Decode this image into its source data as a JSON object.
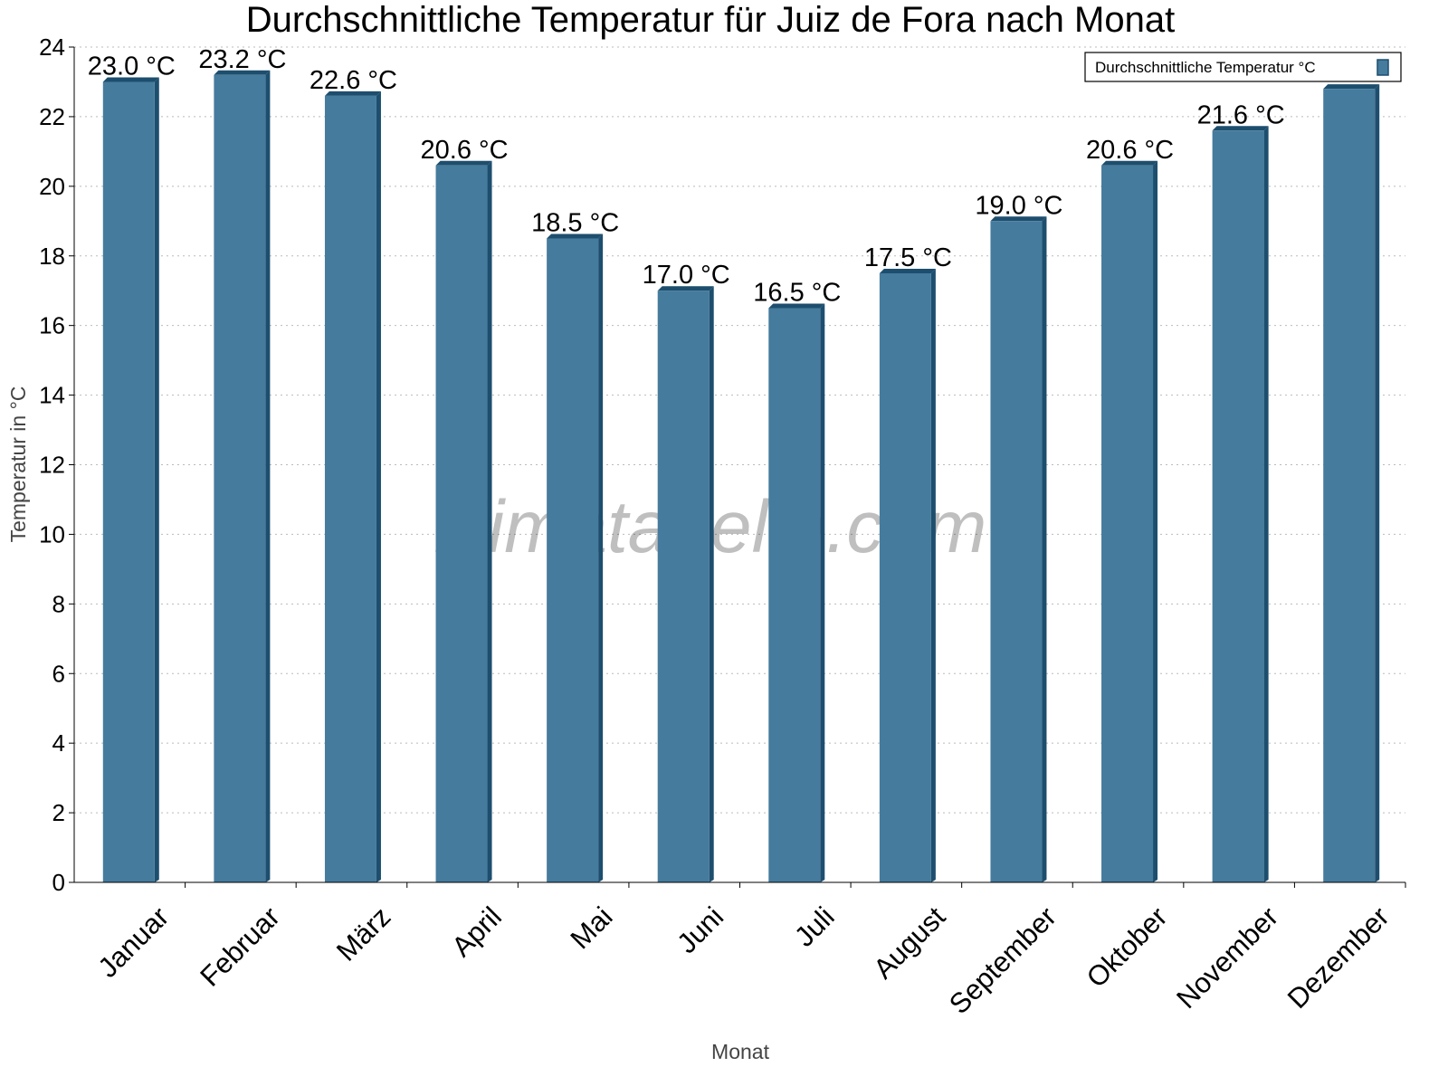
{
  "chart_data": {
    "type": "bar",
    "title": "Durchschnittliche Temperatur für Juiz de Fora nach Monat",
    "xlabel": "Monat",
    "ylabel": "Temperatur in °C",
    "ylim": [
      0,
      24
    ],
    "yticks": [
      0,
      2,
      4,
      6,
      8,
      10,
      12,
      14,
      16,
      18,
      20,
      22,
      24
    ],
    "grid": true,
    "legend_position": "top-right",
    "categories": [
      "Januar",
      "Februar",
      "März",
      "April",
      "Mai",
      "Juni",
      "Juli",
      "August",
      "September",
      "Oktober",
      "November",
      "Dezember"
    ],
    "series": [
      {
        "name": "Durchschnittliche Temperatur °C",
        "values": [
          23.0,
          23.2,
          22.6,
          20.6,
          18.5,
          17.0,
          16.5,
          17.5,
          19.0,
          20.6,
          21.6,
          22.8
        ],
        "data_labels": [
          "23.0 °C",
          "23.2 °C",
          "22.6 °C",
          "20.6 °C",
          "18.5 °C",
          "17.0 °C",
          "16.5 °C",
          "17.5 °C",
          "19.0 °C",
          "20.6 °C",
          "21.6 °C",
          ""
        ],
        "color": "#457b9d",
        "edge_color": "#1d4e6e"
      }
    ],
    "watermark": "klimatabelle.com"
  }
}
